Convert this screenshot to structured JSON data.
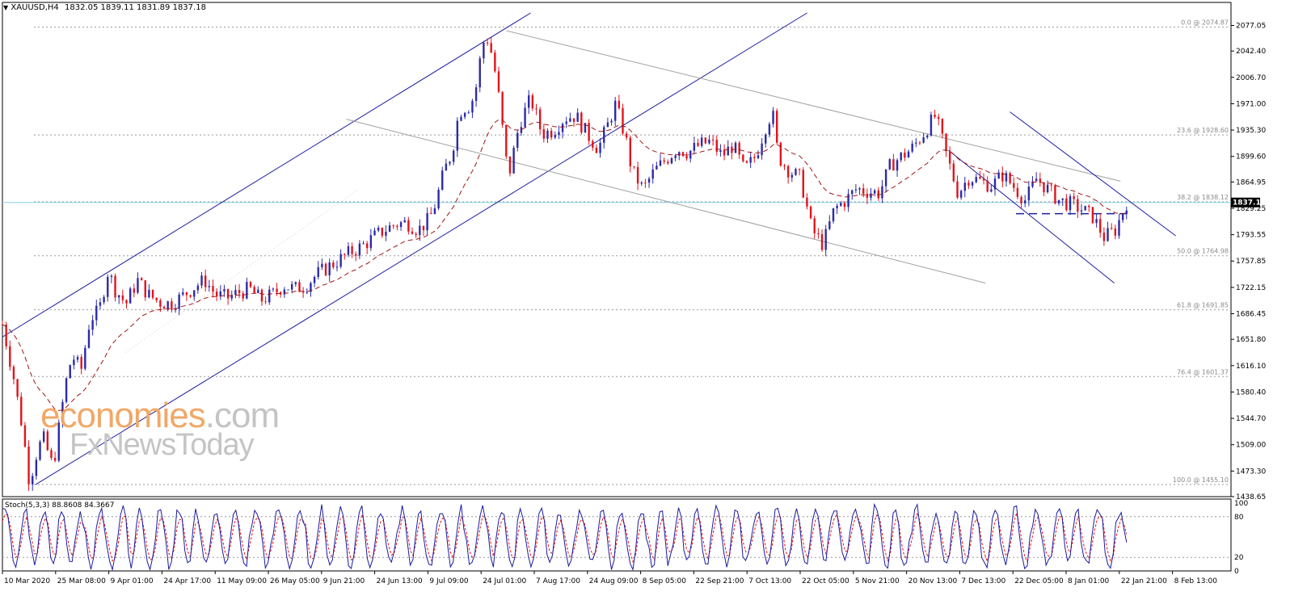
{
  "header": {
    "symbol": "XAUUSD,H4",
    "ohlc": "1832.05 1839.11 1831.89 1837.18"
  },
  "indicator": {
    "label": "Stoch(5,3,3) 88.8608 84.3667",
    "scale_labels": [
      "100",
      "80",
      "20",
      "0"
    ],
    "levels": [
      20,
      80
    ]
  },
  "watermark": {
    "line1a": "economies",
    "line1b": ".com",
    "line2": "FxNewsToday"
  },
  "colors": {
    "candle_up": "#2b2ba8",
    "candle_down": "#e0141c",
    "moving_average": "#a01414",
    "channel": "#1c1ca0",
    "trendline": "#a0a0a0",
    "fib": "#9a9a9a",
    "price_line": "#87cfe6",
    "stoch_main": "#1c1ca0",
    "stoch_signal": "#e0141c",
    "watermark_orange": "#f0a868",
    "watermark_gray": "#c4c4c4"
  },
  "current_price": "1837.18",
  "chart_data": {
    "type": "line",
    "title": "XAUUSD,H4",
    "timeframe": "H4",
    "ylim": [
      1438.65,
      2094
    ],
    "y_ticks": [
      "2077.05",
      "2042.40",
      "2006.70",
      "1971.00",
      "1935.30",
      "1899.60",
      "1864.95",
      "1829.25",
      "1793.55",
      "1757.85",
      "1722.15",
      "1686.45",
      "1651.80",
      "1616.10",
      "1580.40",
      "1544.70",
      "1509.00",
      "1473.30",
      "1438.65"
    ],
    "x_labels": [
      "10 Mar 2020",
      "25 Mar 08:00",
      "9 Apr 01:00",
      "24 Apr 17:00",
      "11 May 09:00",
      "26 May 05:00",
      "9 Jun 21:00",
      "24 Jun 13:00",
      "9 Jul 09:00",
      "24 Jul 01:00",
      "7 Aug 17:00",
      "24 Aug 09:00",
      "8 Sep 05:00",
      "22 Sep 21:00",
      "7 Oct 13:00",
      "22 Oct 05:00",
      "5 Nov 21:00",
      "20 Nov 13:00",
      "7 Dec 13:00",
      "22 Dec 05:00",
      "8 Jan 01:00",
      "22 Jan 21:00",
      "8 Feb 13:00"
    ],
    "close_path": {
      "x": [
        0,
        0.01,
        0.018,
        0.024,
        0.03,
        0.036,
        0.045,
        0.056,
        0.062,
        0.07,
        0.078,
        0.086,
        0.094,
        0.1,
        0.11,
        0.12,
        0.13,
        0.14,
        0.15,
        0.16,
        0.17,
        0.18,
        0.19,
        0.2,
        0.21,
        0.22,
        0.23,
        0.24,
        0.25,
        0.26,
        0.27,
        0.28,
        0.29,
        0.3,
        0.31,
        0.32,
        0.33,
        0.34,
        0.35,
        0.36,
        0.37,
        0.38,
        0.385,
        0.393,
        0.4,
        0.405,
        0.41,
        0.413,
        0.417,
        0.42,
        0.423,
        0.426,
        0.43,
        0.435,
        0.44,
        0.45,
        0.46,
        0.47,
        0.48,
        0.49,
        0.5,
        0.51,
        0.52,
        0.53,
        0.54,
        0.545,
        0.55,
        0.555,
        0.56,
        0.57,
        0.58,
        0.59,
        0.6,
        0.61,
        0.62,
        0.63,
        0.64,
        0.65,
        0.66,
        0.67,
        0.68,
        0.685,
        0.69,
        0.7,
        0.71,
        0.72,
        0.73,
        0.74,
        0.75,
        0.76,
        0.77,
        0.78,
        0.79,
        0.8,
        0.805,
        0.81,
        0.82,
        0.83,
        0.84,
        0.85,
        0.86,
        0.87,
        0.88,
        0.89,
        0.9,
        0.91,
        0.92,
        0.93,
        0.94,
        0.95,
        0.96,
        0.97,
        0.98,
        0.99,
        1.0
      ],
      "y": [
        1672,
        1600,
        1530,
        1458,
        1495,
        1520,
        1478,
        1590,
        1630,
        1610,
        1680,
        1690,
        1745,
        1720,
        1700,
        1732,
        1712,
        1702,
        1700,
        1710,
        1722,
        1732,
        1712,
        1708,
        1715,
        1720,
        1705,
        1712,
        1725,
        1720,
        1725,
        1740,
        1750,
        1760,
        1770,
        1778,
        1790,
        1800,
        1808,
        1810,
        1800,
        1815,
        1835,
        1880,
        1905,
        1950,
        1970,
        1962,
        1975,
        1980,
        2010,
        2042,
        2066,
        2040,
        2000,
        1870,
        1945,
        1978,
        1930,
        1935,
        1952,
        1955,
        1930,
        1910,
        1948,
        1970,
        1948,
        1920,
        1880,
        1855,
        1880,
        1895,
        1910,
        1905,
        1915,
        1920,
        1900,
        1915,
        1880,
        1900,
        1945,
        1960,
        1900,
        1880,
        1870,
        1800,
        1780,
        1828,
        1840,
        1856,
        1852,
        1850,
        1888,
        1900,
        1905,
        1912,
        1932,
        1955,
        1900,
        1850,
        1872,
        1866,
        1860,
        1875,
        1858,
        1840,
        1870,
        1855,
        1840,
        1835,
        1828,
        1818,
        1790,
        1800,
        1837
      ]
    },
    "moving_average_note": "dashed moving average",
    "fibonacci_levels": [
      {
        "label": "0.0 @ 2074.87",
        "price": 2074.87
      },
      {
        "label": "23.6 @ 1928.60",
        "price": 1928.6
      },
      {
        "label": "38.2 @ 1838.12",
        "price": 1838.12
      },
      {
        "label": "50.0 @ 1764.98",
        "price": 1764.98
      },
      {
        "label": "61.8 @ 1691.85",
        "price": 1691.85
      },
      {
        "label": "76.4 @ 1601.37",
        "price": 1601.37
      },
      {
        "label": "100.0 @ 1455.10",
        "price": 1455.1
      }
    ],
    "stochastic": {
      "ylim": [
        0,
        100
      ],
      "levels": [
        20,
        80
      ]
    },
    "grid": false
  }
}
